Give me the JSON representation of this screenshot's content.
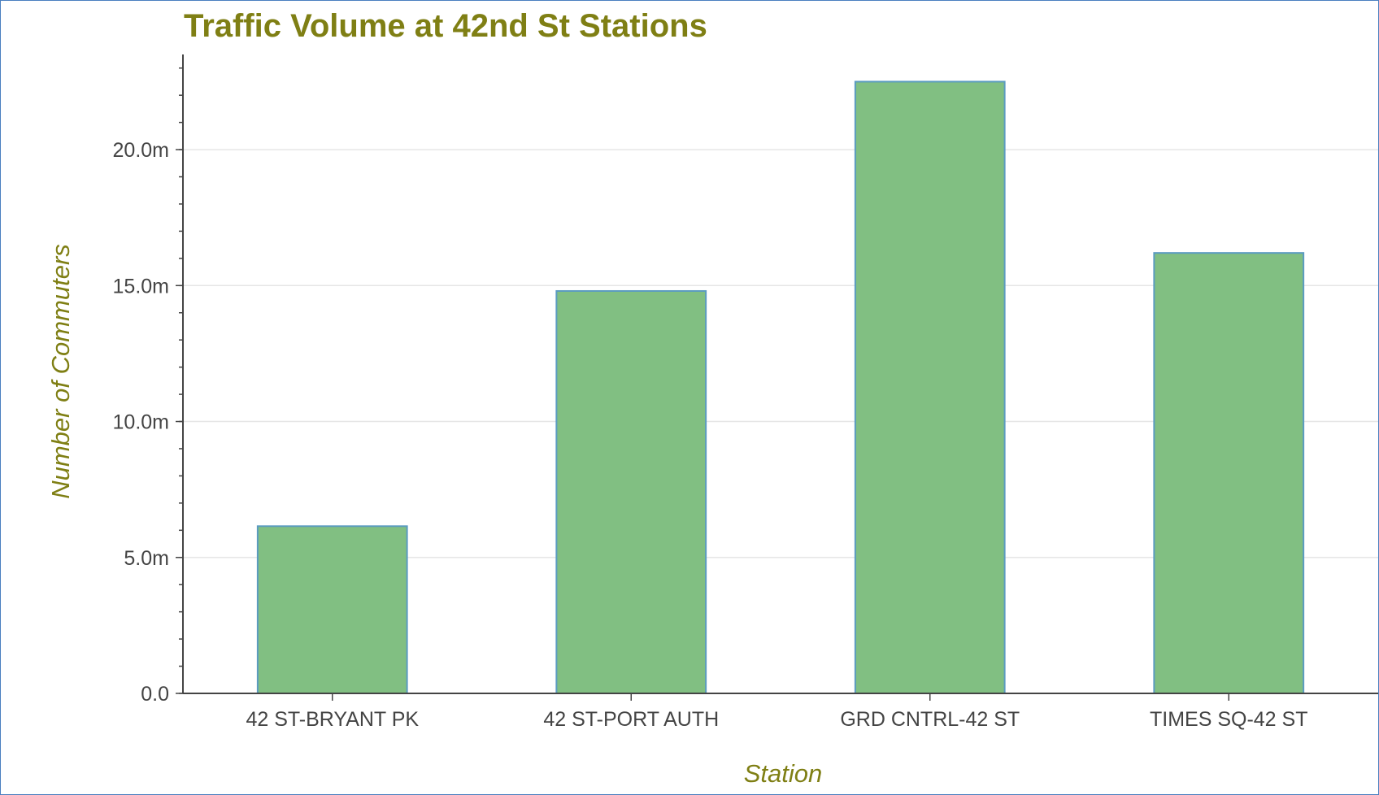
{
  "chart_data": {
    "type": "bar",
    "title": "Traffic Volume at 42nd St Stations",
    "xlabel": "Station",
    "ylabel": "Number of Commuters",
    "categories": [
      "42 ST-BRYANT PK",
      "42 ST-PORT AUTH",
      "GRD CNTRL-42 ST",
      "TIMES SQ-42 ST"
    ],
    "values": [
      6150000,
      14800000,
      22500000,
      16200000
    ],
    "ylim": [
      0,
      23500000
    ],
    "yticks": [
      0,
      5000000,
      10000000,
      15000000,
      20000000
    ],
    "ytick_labels": [
      "0.0",
      "5.0m",
      "10.0m",
      "15.0m",
      "20.0m"
    ],
    "grid": true,
    "legend": "none",
    "colors": {
      "bar_fill": "#81bf82",
      "bar_stroke": "#5b9bc0",
      "title": "#7f7f14"
    }
  }
}
